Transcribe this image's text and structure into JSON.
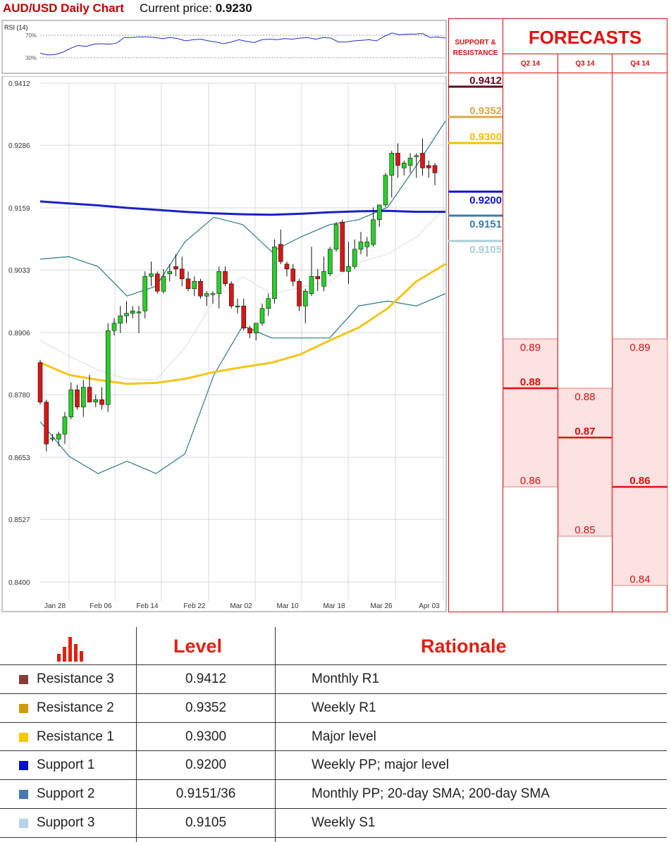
{
  "header": {
    "title": "AUD/USD Daily Chart",
    "price_label": "Current price:",
    "price_value": "0.9230"
  },
  "sr_panel": {
    "title_line1": "SUPPORT &",
    "title_line2": "RESISTANCE",
    "levels": [
      {
        "value": "0.9412",
        "color": "#5a0f24"
      },
      {
        "value": "0.9352",
        "color": "#d8a84a"
      },
      {
        "value": "0.9300",
        "color": "#f2c200"
      },
      {
        "value": "0.9200",
        "color": "#1010d0"
      },
      {
        "value": "0.9151",
        "color": "#3a7ca5"
      },
      {
        "value": "0.9105",
        "color": "#a8cfd8"
      }
    ]
  },
  "forecasts": {
    "title": "FORECASTS",
    "columns": [
      {
        "quarter": "Q2 14",
        "high": "0.89",
        "mid": "0.88",
        "low": "0.86"
      },
      {
        "quarter": "Q3 14",
        "high": "0.88",
        "mid": "0.87",
        "low": "0.85"
      },
      {
        "quarter": "Q4 14",
        "high": "0.89",
        "mid": "0.86",
        "low": "0.84"
      }
    ]
  },
  "rsi": {
    "label": "RSI (14)",
    "level_high": "70%",
    "level_low": "30%",
    "values": [
      38,
      35,
      36,
      40,
      47,
      52,
      50,
      54,
      55,
      54,
      56,
      66,
      66,
      67,
      67,
      66,
      64,
      66,
      64,
      60,
      62,
      63,
      60,
      58,
      55,
      58,
      62,
      59,
      57,
      62,
      63,
      62,
      64,
      63,
      65,
      66,
      63,
      66,
      65,
      58,
      58,
      60,
      61,
      62,
      60,
      68,
      74,
      71,
      72,
      72,
      73,
      66,
      67,
      65
    ]
  },
  "chart_data": {
    "type": "candlestick",
    "title": "AUD/USD Daily Chart",
    "y_ticks": [
      "0.9412",
      "0.9286",
      "0.9159",
      "0.9033",
      "0.8906",
      "0.8780",
      "0.8653",
      "0.8527",
      "0.8400"
    ],
    "x_ticks": [
      "Jan 28",
      "Feb 06",
      "Feb 14",
      "Feb 22",
      "Mar 02",
      "Mar 10",
      "Mar 18",
      "Mar 26",
      "Apr 03"
    ],
    "ylim": [
      0.84,
      0.9412
    ],
    "grid": true,
    "candles": [
      [
        0.8845,
        0.885,
        0.876,
        0.8765
      ],
      [
        0.8765,
        0.877,
        0.8665,
        0.868
      ],
      [
        0.869,
        0.87,
        0.8685,
        0.8692
      ],
      [
        0.869,
        0.8705,
        0.8675,
        0.87
      ],
      [
        0.87,
        0.8745,
        0.868,
        0.8735
      ],
      [
        0.8735,
        0.8805,
        0.873,
        0.879
      ],
      [
        0.879,
        0.88,
        0.875,
        0.8755
      ],
      [
        0.8755,
        0.881,
        0.8735,
        0.8795
      ],
      [
        0.8795,
        0.882,
        0.8765,
        0.8765
      ],
      [
        0.8765,
        0.878,
        0.8755,
        0.877
      ],
      [
        0.877,
        0.8795,
        0.875,
        0.876
      ],
      [
        0.876,
        0.8925,
        0.8745,
        0.891
      ],
      [
        0.891,
        0.8935,
        0.89,
        0.8925
      ],
      [
        0.8925,
        0.896,
        0.8905,
        0.894
      ],
      [
        0.894,
        0.897,
        0.8925,
        0.8945
      ],
      [
        0.8945,
        0.896,
        0.8935,
        0.895
      ],
      [
        0.8948,
        0.896,
        0.8905,
        0.8948
      ],
      [
        0.895,
        0.903,
        0.8935,
        0.902
      ],
      [
        0.902,
        0.905,
        0.9,
        0.9025
      ],
      [
        0.9025,
        0.903,
        0.8985,
        0.899
      ],
      [
        0.899,
        0.9035,
        0.8985,
        0.902
      ],
      [
        0.9025,
        0.9045,
        0.901,
        0.903
      ],
      [
        0.904,
        0.9065,
        0.902,
        0.9035
      ],
      [
        0.9035,
        0.906,
        0.9,
        0.9015
      ],
      [
        0.9015,
        0.903,
        0.899,
        0.8995
      ],
      [
        0.8995,
        0.902,
        0.898,
        0.901
      ],
      [
        0.901,
        0.9015,
        0.8975,
        0.898
      ],
      [
        0.898,
        0.899,
        0.896,
        0.8985
      ],
      [
        0.8985,
        0.899,
        0.8965,
        0.8985
      ],
      [
        0.8985,
        0.904,
        0.8955,
        0.903
      ],
      [
        0.903,
        0.904,
        0.9,
        0.9005
      ],
      [
        0.9005,
        0.901,
        0.8955,
        0.896
      ],
      [
        0.896,
        0.8975,
        0.8945,
        0.896
      ],
      [
        0.896,
        0.8975,
        0.891,
        0.8915
      ],
      [
        0.8915,
        0.892,
        0.8895,
        0.8905
      ],
      [
        0.8905,
        0.8925,
        0.889,
        0.8925
      ],
      [
        0.8925,
        0.8965,
        0.892,
        0.8955
      ],
      [
        0.8955,
        0.8985,
        0.894,
        0.8975
      ],
      [
        0.8975,
        0.9095,
        0.8965,
        0.908
      ],
      [
        0.9085,
        0.9115,
        0.9045,
        0.905
      ],
      [
        0.9045,
        0.905,
        0.902,
        0.9035
      ],
      [
        0.9035,
        0.9045,
        0.9,
        0.901
      ],
      [
        0.901,
        0.9015,
        0.895,
        0.896
      ],
      [
        0.896,
        0.8995,
        0.8925,
        0.899
      ],
      [
        0.8985,
        0.908,
        0.898,
        0.902
      ],
      [
        0.902,
        0.9035,
        0.899,
        0.9015
      ],
      [
        0.9,
        0.906,
        0.899,
        0.903
      ],
      [
        0.9025,
        0.908,
        0.902,
        0.9075
      ],
      [
        0.9075,
        0.913,
        0.907,
        0.9125
      ],
      [
        0.913,
        0.9135,
        0.903,
        0.903
      ],
      [
        0.903,
        0.909,
        0.9005,
        0.904
      ],
      [
        0.904,
        0.9095,
        0.9035,
        0.9075
      ],
      [
        0.9075,
        0.911,
        0.9065,
        0.909
      ],
      [
        0.908,
        0.91,
        0.906,
        0.909
      ],
      [
        0.9085,
        0.916,
        0.908,
        0.9135
      ],
      [
        0.9135,
        0.916,
        0.912,
        0.9165
      ],
      [
        0.9165,
        0.923,
        0.916,
        0.9225
      ],
      [
        0.9225,
        0.9275,
        0.918,
        0.927
      ],
      [
        0.927,
        0.929,
        0.922,
        0.9245
      ],
      [
        0.924,
        0.9255,
        0.9225,
        0.925
      ],
      [
        0.9245,
        0.927,
        0.923,
        0.926
      ],
      [
        0.9265,
        0.927,
        0.922,
        0.9265
      ],
      [
        0.927,
        0.93,
        0.9225,
        0.924
      ],
      [
        0.9245,
        0.9255,
        0.922,
        0.924
      ],
      [
        0.9245,
        0.925,
        0.9205,
        0.923
      ]
    ],
    "sma200": [
      0.9172,
      0.9168,
      0.9164,
      0.9159,
      0.9155,
      0.9151,
      0.9148,
      0.9146,
      0.9145,
      0.9147,
      0.915,
      0.9152,
      0.9153,
      0.9151,
      0.9151
    ],
    "sma20": [
      0.8845,
      0.882,
      0.881,
      0.8802,
      0.8804,
      0.8812,
      0.8826,
      0.8836,
      0.8845,
      0.8862,
      0.889,
      0.8916,
      0.8955,
      0.901,
      0.9045
    ],
    "bb_upper": [
      0.9055,
      0.906,
      0.904,
      0.898,
      0.9,
      0.909,
      0.914,
      0.9125,
      0.907,
      0.91,
      0.9125,
      0.9135,
      0.916,
      0.9245,
      0.9335
    ],
    "bb_lower": [
      0.8725,
      0.8655,
      0.862,
      0.8645,
      0.862,
      0.866,
      0.882,
      0.892,
      0.8895,
      0.8895,
      0.8895,
      0.896,
      0.897,
      0.896,
      0.8985
    ],
    "bb_mid": [
      0.889,
      0.8858,
      0.883,
      0.8812,
      0.881,
      0.8875,
      0.897,
      0.902,
      0.8984,
      0.8998,
      0.901,
      0.9048,
      0.9065,
      0.91,
      0.916
    ],
    "sr_levels": [
      0.9412,
      0.9352,
      0.93,
      0.92,
      0.9151,
      0.9105
    ]
  },
  "table": {
    "col_level": "Level",
    "col_rationale": "Rationale",
    "rows": [
      {
        "name": "Resistance 3",
        "level": "0.9412",
        "rationale": "Monthly R1",
        "color": "#8b3a3a"
      },
      {
        "name": "Resistance 2",
        "level": "0.9352",
        "rationale": "Weekly R1",
        "color": "#d09a10"
      },
      {
        "name": "Resistance 1",
        "level": "0.9300",
        "rationale": "Major level",
        "color": "#f5c800"
      },
      {
        "name": "Support 1",
        "level": "0.9200",
        "rationale": "Weekly PP; major level",
        "color": "#0010d0"
      },
      {
        "name": "Support 2",
        "level": "0.9151/36",
        "rationale": "Monthly PP; 20-day SMA; 200-day SMA",
        "color": "#4a78b0"
      },
      {
        "name": "Support 3",
        "level": "0.9105",
        "rationale": "Weekly S1",
        "color": "#b8cfe8"
      }
    ]
  }
}
